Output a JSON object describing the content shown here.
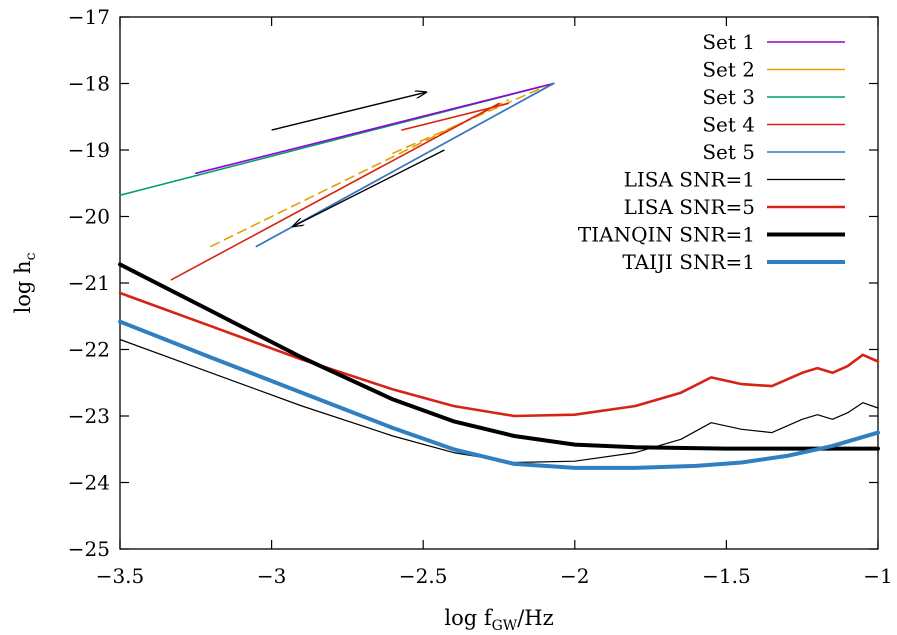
{
  "chart_data": {
    "type": "line",
    "xlabel": "log f",
    "xlabel_sub": "GW",
    "xlabel_tail": "/Hz",
    "ylabel": "log h",
    "ylabel_sub": "c",
    "xlim": [
      -3.5,
      -1
    ],
    "ylim": [
      -25,
      -17
    ],
    "xticks": [
      -3.5,
      -3,
      -2.5,
      -2,
      -1.5,
      -1
    ],
    "xtick_labels": [
      "−3.5",
      "−3",
      "−2.5",
      "−2",
      "−1.5",
      "−1"
    ],
    "yticks": [
      -25,
      -24,
      -23,
      -22,
      -21,
      -20,
      -19,
      -18,
      -17
    ],
    "ytick_labels": [
      "−25",
      "−24",
      "−23",
      "−22",
      "−21",
      "−20",
      "−19",
      "−18",
      "−17"
    ],
    "grid": false,
    "legend_position": "top-right",
    "series": [
      {
        "name": "Set 1",
        "color": "#9400d3",
        "dash": false,
        "segments": [
          {
            "x": [
              -3.25,
              -2.07
            ],
            "y": [
              -19.35,
              -18.0
            ]
          },
          {
            "x": [
              -3.05,
              -2.07
            ],
            "y": [
              -20.45,
              -18.0
            ]
          }
        ]
      },
      {
        "name": "Set 2",
        "color": "#e69f00",
        "dash": true,
        "segments": [
          {
            "x": [
              -3.2,
              -2.22
            ],
            "y": [
              -20.45,
              -18.25
            ]
          },
          {
            "x": [
              -2.6,
              -2.1
            ],
            "y": [
              -19.05,
              -18.05
            ]
          }
        ]
      },
      {
        "name": "Set 3",
        "color": "#009e73",
        "dash": false,
        "segments": [
          {
            "x": [
              -3.5,
              -2.07
            ],
            "y": [
              -19.68,
              -18.0
            ]
          }
        ]
      },
      {
        "name": "Set 4",
        "color": "#d62414",
        "dash": false,
        "segments": [
          {
            "x": [
              -3.33,
              -2.25
            ],
            "y": [
              -20.95,
              -18.3
            ]
          },
          {
            "x": [
              -2.57,
              -2.22
            ],
            "y": [
              -18.7,
              -18.3
            ]
          }
        ]
      },
      {
        "name": "Set 5",
        "color": "#2f7fc1",
        "dash": false,
        "segments": [
          {
            "x": [
              -3.05,
              -2.07
            ],
            "y": [
              -20.45,
              -18.0
            ]
          }
        ]
      },
      {
        "name": "LISA SNR=1",
        "color": "#000000",
        "width": 1.2,
        "dash": false,
        "segments": [
          {
            "x": [
              -3.5,
              -3.2,
              -2.9,
              -2.6,
              -2.4,
              -2.2,
              -2.0,
              -1.8,
              -1.65,
              -1.55,
              -1.45,
              -1.35,
              -1.25,
              -1.2,
              -1.15,
              -1.1,
              -1.05,
              -1.0
            ],
            "y": [
              -21.85,
              -22.35,
              -22.85,
              -23.3,
              -23.55,
              -23.7,
              -23.68,
              -23.55,
              -23.35,
              -23.1,
              -23.2,
              -23.25,
              -23.05,
              -22.98,
              -23.05,
              -22.95,
              -22.8,
              -22.88
            ]
          }
        ]
      },
      {
        "name": "LISA SNR=5",
        "color": "#d62414",
        "width": 2.6,
        "dash": false,
        "segments": [
          {
            "x": [
              -3.5,
              -3.2,
              -2.9,
              -2.6,
              -2.4,
              -2.2,
              -2.0,
              -1.8,
              -1.65,
              -1.55,
              -1.45,
              -1.35,
              -1.25,
              -1.2,
              -1.15,
              -1.1,
              -1.05,
              -1.0
            ],
            "y": [
              -21.15,
              -21.65,
              -22.15,
              -22.6,
              -22.85,
              -23.0,
              -22.98,
              -22.85,
              -22.65,
              -22.42,
              -22.52,
              -22.55,
              -22.35,
              -22.28,
              -22.35,
              -22.25,
              -22.08,
              -22.18
            ]
          }
        ]
      },
      {
        "name": "TIANQIN SNR=1",
        "color": "#000000",
        "width": 4,
        "dash": false,
        "segments": [
          {
            "x": [
              -3.5,
              -3.2,
              -2.9,
              -2.6,
              -2.4,
              -2.2,
              -2.0,
              -1.8,
              -1.5,
              -1.2,
              -1.0
            ],
            "y": [
              -20.72,
              -21.42,
              -22.12,
              -22.75,
              -23.08,
              -23.3,
              -23.43,
              -23.47,
              -23.49,
              -23.49,
              -23.49
            ]
          }
        ]
      },
      {
        "name": "TAIJI SNR=1",
        "color": "#2f7fc1",
        "width": 4,
        "dash": false,
        "segments": [
          {
            "x": [
              -3.5,
              -3.2,
              -2.9,
              -2.6,
              -2.4,
              -2.2,
              -2.0,
              -1.8,
              -1.6,
              -1.45,
              -1.3,
              -1.15,
              -1.0
            ],
            "y": [
              -21.58,
              -22.12,
              -22.65,
              -23.18,
              -23.5,
              -23.72,
              -23.78,
              -23.78,
              -23.75,
              -23.7,
              -23.6,
              -23.45,
              -23.25
            ]
          }
        ]
      }
    ],
    "annotations": [
      {
        "type": "arrow",
        "from": [
          -3.0,
          -18.7
        ],
        "to": [
          -2.49,
          -18.13
        ]
      },
      {
        "type": "arrow",
        "from": [
          -2.43,
          -19.0
        ],
        "to": [
          -2.93,
          -20.15
        ]
      }
    ]
  }
}
